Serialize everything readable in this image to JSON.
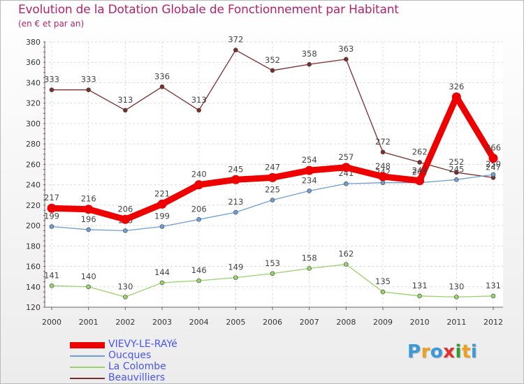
{
  "header": {
    "title": "Evolution de la Dotation Globale de Fonctionnement par Habitant",
    "subtitle": "(en € et par an)"
  },
  "chart_data": {
    "type": "line",
    "title": "Evolution de la Dotation Globale de Fonctionnement par Habitant",
    "subtitle": "(en € et par an)",
    "xlabel": "",
    "ylabel": "",
    "ylim": [
      120,
      380
    ],
    "y_ticks": [
      120,
      140,
      160,
      180,
      200,
      220,
      240,
      260,
      280,
      300,
      320,
      340,
      360,
      380
    ],
    "grid": true,
    "x": [
      "2000",
      "2001",
      "2002",
      "2003",
      "2004",
      "2005",
      "2006",
      "2007",
      "2008",
      "2009",
      "2010",
      "2011",
      "2012"
    ],
    "series": [
      {
        "name": "Beauvilliers",
        "color": "#7b2c2c",
        "values": [
          333,
          333,
          313,
          336,
          313,
          372,
          352,
          358,
          363,
          272,
          262,
          252,
          247
        ]
      },
      {
        "name": "La Colombe",
        "color": "#99d26a",
        "values": [
          141,
          140,
          130,
          144,
          146,
          149,
          153,
          158,
          162,
          135,
          131,
          130,
          131
        ]
      },
      {
        "name": "Oucques",
        "color": "#6e9ed2",
        "values": [
          199,
          196,
          195,
          199,
          206,
          213,
          225,
          234,
          241,
          242,
          242,
          245,
          250
        ]
      },
      {
        "name": "VIEVY-LE-RAYé",
        "color": "#ee0000",
        "values": [
          217,
          216,
          206,
          221,
          240,
          245,
          247,
          254,
          257,
          248,
          244,
          326,
          266
        ]
      }
    ],
    "legend_order": [
      "VIEVY-LE-RAYé",
      "Oucques",
      "La Colombe",
      "Beauvilliers"
    ],
    "legend_position": "bottom-left"
  },
  "brand": {
    "letters": [
      "P",
      "r",
      "o",
      "x",
      "i",
      "t",
      "i"
    ],
    "colors": [
      "#3a9ad9",
      "#f0a020",
      "#3a9ad9",
      "#e03030",
      "#2f9e2f",
      "#f0a020",
      "#3a9ad9"
    ]
  }
}
